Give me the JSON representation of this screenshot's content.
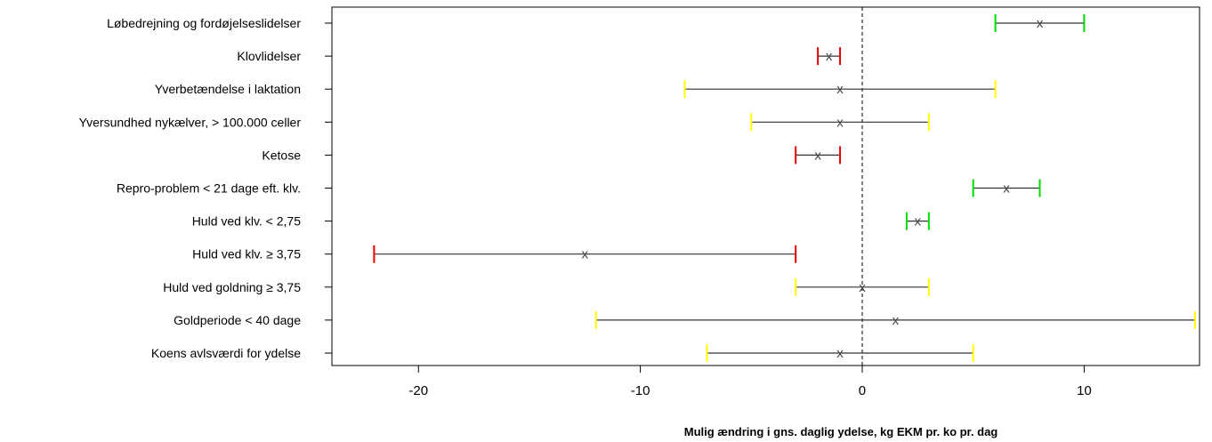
{
  "chart_data": {
    "type": "interval",
    "orientation": "horizontal",
    "xlabel": "Mulig ændring i gns. daglig ydelse, kg EKM pr. ko pr. dag",
    "xlim": [
      -23.9,
      15.2
    ],
    "xticks": [
      -20,
      -10,
      0,
      10
    ],
    "tick_labels": [
      "-20",
      "-10",
      "0",
      "10"
    ],
    "reference_line_x": 0,
    "marker_symbol": "x",
    "colors": {
      "green": "#00dd00",
      "red": "#ee0000",
      "yellow": "#ffff00",
      "line": "#333333"
    },
    "rows": [
      {
        "label": "Løbedrejning og fordøjelseslidelser",
        "low": 6,
        "estimate": 8,
        "high": 10,
        "color": "green"
      },
      {
        "label": "Klovlidelser",
        "low": -2,
        "estimate": -1.5,
        "high": -1,
        "color": "red"
      },
      {
        "label": "Yverbetændelse i laktation",
        "low": -8,
        "estimate": -1,
        "high": 6,
        "color": "yellow"
      },
      {
        "label": "Yversundhed nykælver, > 100.000 celler",
        "low": -5,
        "estimate": -1,
        "high": 3,
        "color": "yellow"
      },
      {
        "label": "Ketose",
        "low": -3,
        "estimate": -2,
        "high": -1,
        "color": "red"
      },
      {
        "label": "Repro-problem < 21 dage eft. klv.",
        "low": 5,
        "estimate": 6.5,
        "high": 8,
        "color": "green"
      },
      {
        "label": "Huld ved klv. < 2,75",
        "low": 2,
        "estimate": 2.5,
        "high": 3,
        "color": "green"
      },
      {
        "label": "Huld ved klv. ≥ 3,75",
        "low": -22,
        "estimate": -12.5,
        "high": -3,
        "color": "red"
      },
      {
        "label": "Huld ved goldning ≥ 3,75",
        "low": -3,
        "estimate": 0,
        "high": 3,
        "color": "yellow"
      },
      {
        "label": "Goldperiode < 40 dage",
        "low": -12,
        "estimate": 1.5,
        "high": 15,
        "color": "yellow"
      },
      {
        "label": "Koens avlsværdi for ydelse",
        "low": -7,
        "estimate": -1,
        "high": 5,
        "color": "yellow"
      }
    ]
  }
}
